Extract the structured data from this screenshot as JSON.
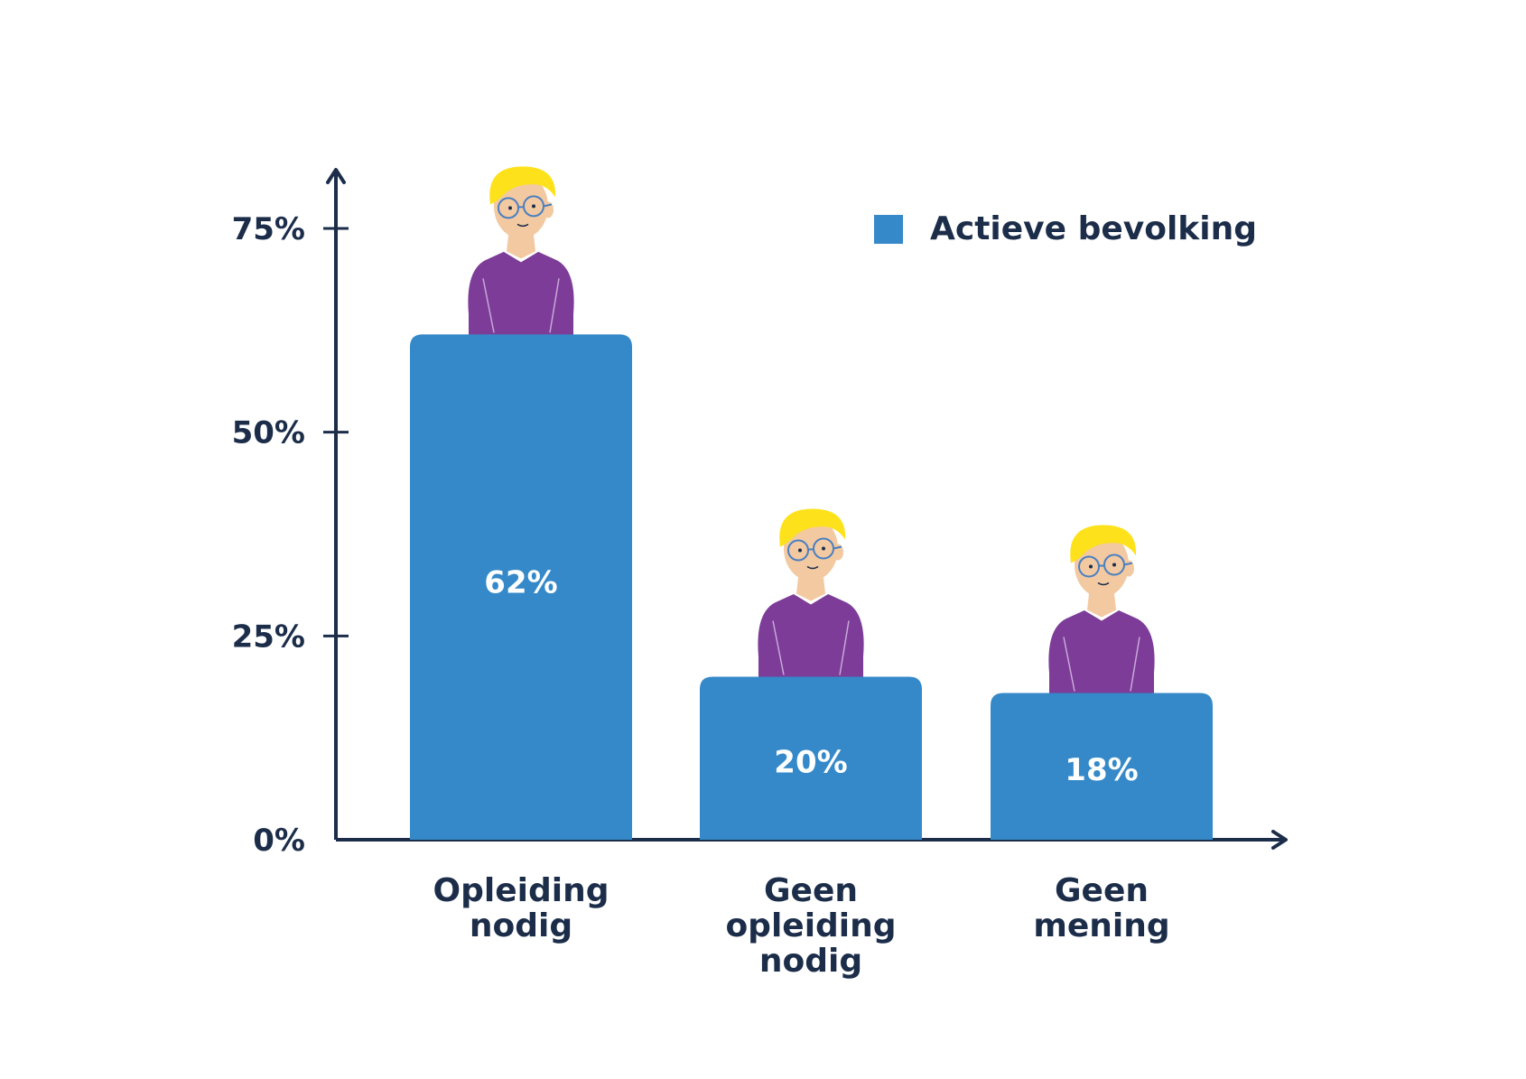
{
  "chart_data": {
    "type": "bar",
    "categories": [
      [
        "Opleiding",
        "nodig"
      ],
      [
        "Geen",
        "opleiding",
        "nodig"
      ],
      [
        "Geen",
        "mening"
      ]
    ],
    "series": [
      {
        "name": "Actieve bevolking",
        "values": [
          62,
          20,
          18
        ],
        "color": "#3589c9"
      }
    ],
    "data_labels": [
      "62%",
      "20%",
      "18%"
    ],
    "yticks": [
      0,
      25,
      50,
      75
    ],
    "ytick_labels": [
      "0%",
      "25%",
      "50%",
      "75%"
    ],
    "ylim": [
      0,
      75
    ],
    "legend_position": "top-right",
    "grid": false,
    "colors": {
      "axis": "#1c2d4a",
      "bar": "#3589c9",
      "sweater": "#7c3c98",
      "hair": "#fde21b",
      "skin": "#f2c9a1"
    },
    "icons": [
      "person-leaning-icon"
    ]
  }
}
